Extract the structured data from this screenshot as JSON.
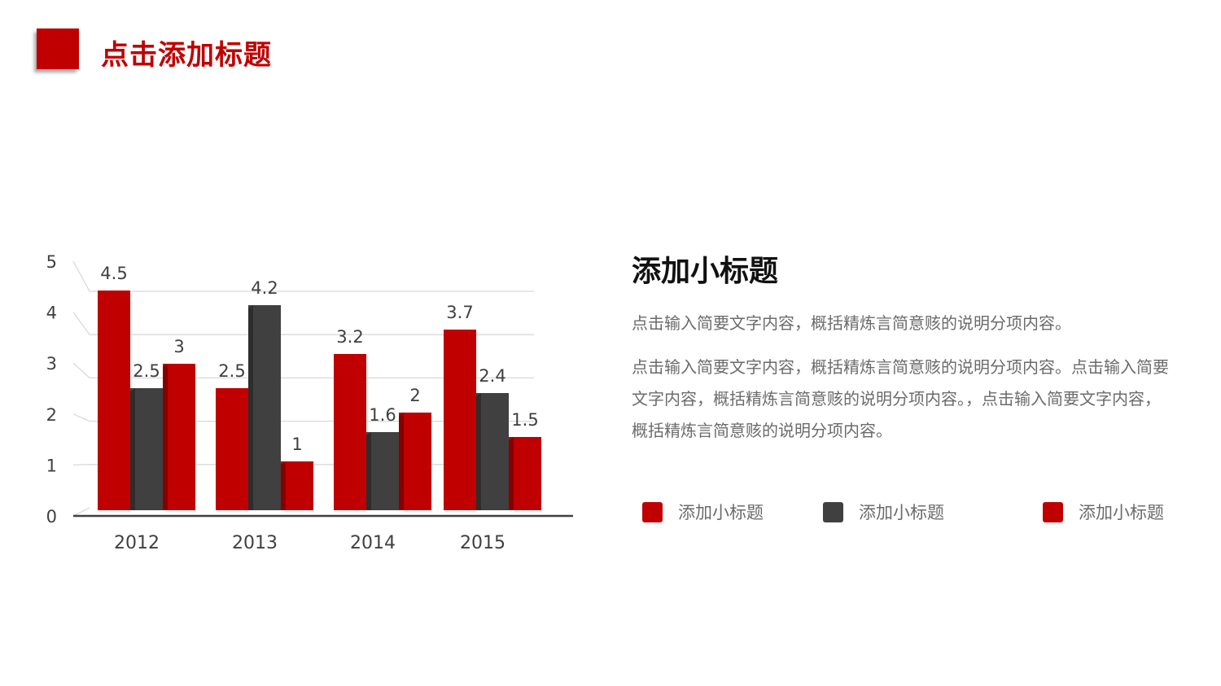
{
  "page": {
    "title": "点击添加标题"
  },
  "content": {
    "subtitle": "添加小标题",
    "paragraph1": "点击输入简要文字内容，概括精炼言简意赅的说明分项内容。",
    "paragraph2": "点击输入简要文字内容，概括精炼言简意赅的说明分项内容。点击输入简要文字内容，概括精炼言简意赅的说明分项内容。，点击输入简要文字内容，概括精炼言简意赅的说明分项内容。"
  },
  "legend": {
    "items": [
      {
        "label": "添加小标题",
        "color": "#c00000"
      },
      {
        "label": "添加小标题",
        "color": "#404040"
      },
      {
        "label": "添加小标题",
        "color": "#c00000"
      }
    ]
  },
  "colors": {
    "accent": "#c00000",
    "dark": "#404040"
  },
  "chart_data": {
    "type": "bar",
    "categories": [
      "2012",
      "2013",
      "2014",
      "2015"
    ],
    "series": [
      {
        "values": [
          4.5,
          2.5,
          3.2,
          3.7
        ],
        "color": "#c00000"
      },
      {
        "values": [
          2.5,
          4.2,
          1.6,
          2.4
        ],
        "color": "#404040"
      },
      {
        "values": [
          3,
          1,
          2,
          1.5
        ],
        "color": "#c00000"
      }
    ],
    "yticks": [
      "0",
      "1",
      "2",
      "3",
      "4",
      "5"
    ],
    "ylim": [
      0,
      5
    ],
    "grid": true,
    "style": "3d-clustered-column"
  }
}
